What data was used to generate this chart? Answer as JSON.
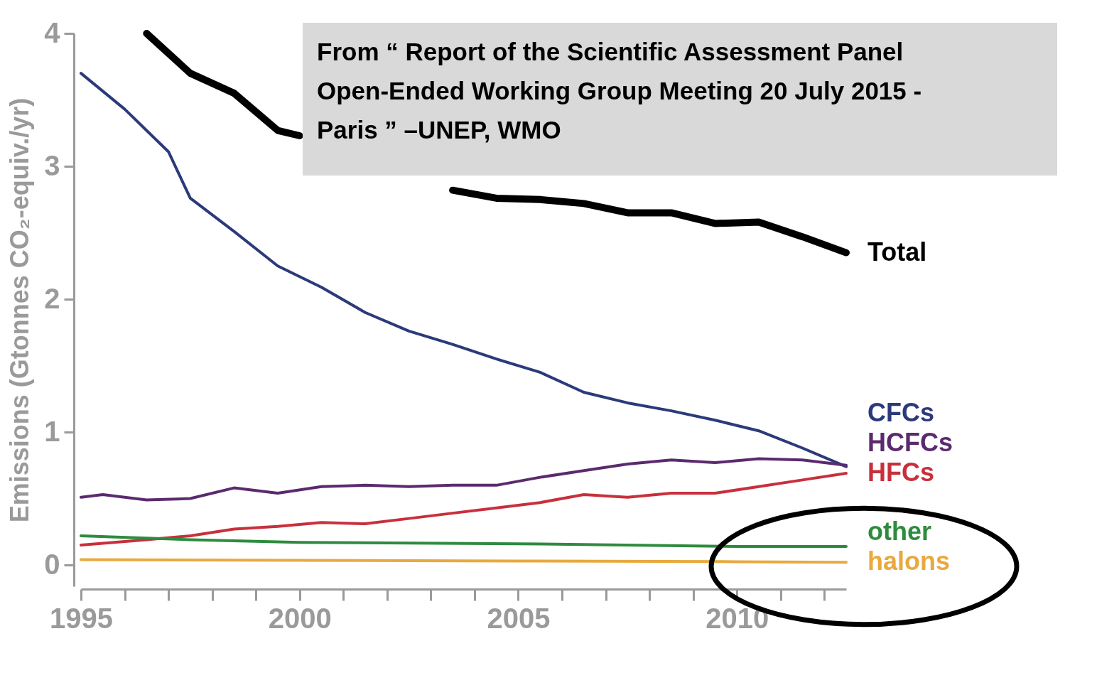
{
  "chart_data": {
    "type": "line",
    "ylabel": "Emissions (Gtonnes CO₂-equiv./yr)",
    "xlim": [
      1995,
      2012.5
    ],
    "ylim": [
      -0.16,
      4.0
    ],
    "xticks": [
      1995,
      {
        "value": 1996,
        "label": null
      },
      {
        "value": 1997,
        "label": null
      },
      {
        "value": 1998,
        "label": null
      },
      {
        "value": 1999,
        "label": null
      },
      2000,
      {
        "value": 2001,
        "label": null
      },
      {
        "value": 2002,
        "label": null
      },
      {
        "value": 2003,
        "label": null
      },
      {
        "value": 2004,
        "label": null
      },
      2005,
      {
        "value": 2006,
        "label": null
      },
      {
        "value": 2007,
        "label": null
      },
      {
        "value": 2008,
        "label": null
      },
      {
        "value": 2009,
        "label": null
      },
      2010,
      {
        "value": 2011,
        "label": null
      },
      {
        "value": 2012,
        "label": null
      }
    ],
    "yticks": [
      0,
      1,
      2,
      3,
      4
    ],
    "grid": false,
    "marker": "none",
    "line_style": "solid",
    "annotations": [
      "From “ Report of the Scientific Assessment Panel Open-Ended Working Group Meeting 20 July 2015 - Paris ” –UNEP, WMO"
    ],
    "series": [
      {
        "name": "Total",
        "color": "#000000",
        "x": [
          1996.5,
          1997.5,
          1998.5,
          1999.5,
          2000,
          2000.5,
          2001.5,
          2002.5,
          2003.5,
          2004.5,
          2005.5,
          2006.5,
          2007.5,
          2008.5,
          2009.5,
          2010.5,
          2011.5,
          2012.5
        ],
        "values": [
          4.0,
          3.7,
          3.55,
          3.27,
          3.23,
          null,
          null,
          null,
          2.82,
          2.76,
          2.75,
          2.72,
          2.65,
          2.65,
          2.57,
          2.58,
          2.47,
          2.35
        ]
      },
      {
        "name": "CFCs",
        "color": "#2b3a7a",
        "x": [
          1995,
          1996,
          1997,
          1997.5,
          1998.5,
          1999.5,
          2000.5,
          2001.5,
          2002.5,
          2003.5,
          2004.5,
          2005.5,
          2006.5,
          2007.5,
          2008.5,
          2009.5,
          2010.5,
          2011.5,
          2012.5
        ],
        "values": [
          3.7,
          3.43,
          3.11,
          2.76,
          2.51,
          2.25,
          2.09,
          1.9,
          1.76,
          1.66,
          1.55,
          1.45,
          1.3,
          1.22,
          1.16,
          1.09,
          1.01,
          0.88,
          0.74
        ]
      },
      {
        "name": "HCFCs",
        "color": "#5b2a6e",
        "x": [
          1995,
          1995.5,
          1996.5,
          1997.5,
          1998.5,
          1999.5,
          2000.5,
          2001.5,
          2002.5,
          2003.5,
          2004.5,
          2005.5,
          2006.5,
          2007.5,
          2008.5,
          2009.5,
          2010.5,
          2011.5,
          2012.5
        ],
        "values": [
          0.51,
          0.53,
          0.49,
          0.5,
          0.58,
          0.54,
          0.59,
          0.6,
          0.59,
          0.6,
          0.6,
          0.66,
          0.71,
          0.76,
          0.79,
          0.77,
          0.8,
          0.79,
          0.75
        ]
      },
      {
        "name": "HFCs",
        "color": "#c8303c",
        "x": [
          1995,
          1996.5,
          1997.5,
          1998.5,
          1999.5,
          2000.5,
          2001.5,
          2002.5,
          2003.5,
          2004.5,
          2005.5,
          2006.5,
          2007.5,
          2008.5,
          2009.5,
          2010.5,
          2011.5,
          2012.5
        ],
        "values": [
          0.15,
          0.19,
          0.22,
          0.27,
          0.29,
          0.32,
          0.31,
          0.35,
          0.39,
          0.43,
          0.47,
          0.53,
          0.51,
          0.54,
          0.54,
          0.59,
          0.64,
          0.69
        ]
      },
      {
        "name": "other",
        "color": "#2e8b3e",
        "x": [
          1995,
          1997.5,
          2000,
          2005,
          2010,
          2012.5
        ],
        "values": [
          0.22,
          0.19,
          0.17,
          0.16,
          0.14,
          0.14
        ]
      },
      {
        "name": "halons",
        "color": "#e8a93e",
        "x": [
          1995,
          2000,
          2005,
          2010,
          2012.5
        ],
        "values": [
          0.04,
          0.035,
          0.03,
          0.025,
          0.02
        ]
      }
    ]
  }
}
